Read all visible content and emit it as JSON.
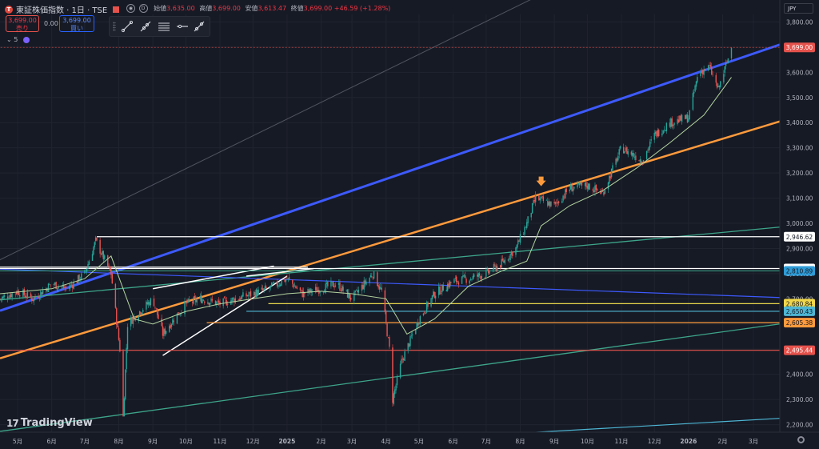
{
  "header": {
    "symbol_name": "東証株価指数 · 1日 · TSE",
    "logo_letter": "T",
    "ohlc": [
      {
        "label": "始値",
        "value": "3,635.00"
      },
      {
        "label": "高値",
        "value": "3,699.00"
      },
      {
        "label": "安値",
        "value": "3,613.47"
      },
      {
        "label": "終値",
        "value": "3,699.00"
      }
    ],
    "change": "+46.59 (+1.28%)",
    "sell_price": "3,699.00",
    "sell_label": "売り",
    "spread": "0.00",
    "buy_price": "3,699.00",
    "buy_label": "買い",
    "indicator_count": "5"
  },
  "currency": "JPY",
  "branding": "TradingView",
  "colors": {
    "background": "#161a25",
    "up": "#26a69a",
    "down": "#ef5350",
    "blue_channel": "#3d5afe",
    "orange_channel": "#ff9a3c",
    "ma": "#b4d4a0"
  },
  "chart_data": {
    "type": "candlestick",
    "title": "",
    "yaxis_side": "right",
    "ylim": [
      2170,
      3830
    ],
    "y_ticks": [
      2200,
      2300,
      2400,
      2500,
      2600,
      2700,
      2800,
      2900,
      3000,
      3100,
      3200,
      3300,
      3400,
      3500,
      3600,
      3700,
      3800
    ],
    "y_tick_labels": [
      "2,200.00",
      "2,300.00",
      "2,400.00",
      "2,500.00",
      "2,600.00",
      "2,700.00",
      "2,800.00",
      "2,900.00",
      "3,000.00",
      "3,100.00",
      "3,200.00",
      "3,300.00",
      "3,400.00",
      "3,500.00",
      "3,600.00",
      "3,700.00",
      "3,800.00"
    ],
    "x_range": [
      "2024-04-15",
      "2026-03-25"
    ],
    "x_ticks": [
      {
        "date": "2024-05-01",
        "label": "5月"
      },
      {
        "date": "2024-06-01",
        "label": "6月"
      },
      {
        "date": "2024-07-01",
        "label": "7月"
      },
      {
        "date": "2024-08-01",
        "label": "8月"
      },
      {
        "date": "2024-09-01",
        "label": "9月"
      },
      {
        "date": "2024-10-01",
        "label": "10月"
      },
      {
        "date": "2024-11-01",
        "label": "11月"
      },
      {
        "date": "2024-12-01",
        "label": "12月"
      },
      {
        "date": "2025-01-01",
        "label": "2025"
      },
      {
        "date": "2025-02-01",
        "label": "2月"
      },
      {
        "date": "2025-03-01",
        "label": "3月"
      },
      {
        "date": "2025-04-01",
        "label": "4月"
      },
      {
        "date": "2025-05-01",
        "label": "5月"
      },
      {
        "date": "2025-06-01",
        "label": "6月"
      },
      {
        "date": "2025-07-01",
        "label": "7月"
      },
      {
        "date": "2025-08-01",
        "label": "8月"
      },
      {
        "date": "2025-09-01",
        "label": "9月"
      },
      {
        "date": "2025-10-01",
        "label": "10月"
      },
      {
        "date": "2025-11-01",
        "label": "11月"
      },
      {
        "date": "2025-12-01",
        "label": "12月"
      },
      {
        "date": "2026-01-01",
        "label": "2026"
      },
      {
        "date": "2026-02-01",
        "label": "2月"
      },
      {
        "date": "2026-03-01",
        "label": "3月"
      }
    ],
    "close_path": [
      [
        "2024-04-15",
        2700
      ],
      [
        "2024-05-01",
        2730
      ],
      [
        "2024-05-15",
        2700
      ],
      [
        "2024-06-01",
        2760
      ],
      [
        "2024-06-15",
        2740
      ],
      [
        "2024-07-01",
        2800
      ],
      [
        "2024-07-11",
        2930
      ],
      [
        "2024-07-25",
        2800
      ],
      [
        "2024-08-02",
        2500
      ],
      [
        "2024-08-05",
        2230
      ],
      [
        "2024-08-09",
        2600
      ],
      [
        "2024-08-20",
        2650
      ],
      [
        "2024-09-01",
        2700
      ],
      [
        "2024-09-10",
        2560
      ],
      [
        "2024-09-20",
        2620
      ],
      [
        "2024-10-01",
        2680
      ],
      [
        "2024-10-15",
        2700
      ],
      [
        "2024-11-01",
        2680
      ],
      [
        "2024-11-15",
        2700
      ],
      [
        "2024-12-01",
        2720
      ],
      [
        "2024-12-15",
        2740
      ],
      [
        "2025-01-01",
        2780
      ],
      [
        "2025-01-15",
        2720
      ],
      [
        "2025-02-01",
        2740
      ],
      [
        "2025-02-15",
        2760
      ],
      [
        "2025-03-01",
        2700
      ],
      [
        "2025-03-20",
        2800
      ],
      [
        "2025-03-28",
        2730
      ],
      [
        "2025-04-04",
        2500
      ],
      [
        "2025-04-07",
        2300
      ],
      [
        "2025-04-15",
        2450
      ],
      [
        "2025-05-01",
        2620
      ],
      [
        "2025-05-15",
        2720
      ],
      [
        "2025-06-01",
        2770
      ],
      [
        "2025-06-15",
        2780
      ],
      [
        "2025-07-01",
        2800
      ],
      [
        "2025-07-15",
        2840
      ],
      [
        "2025-07-28",
        2900
      ],
      [
        "2025-08-07",
        3000
      ],
      [
        "2025-08-15",
        3100
      ],
      [
        "2025-09-01",
        3070
      ],
      [
        "2025-09-15",
        3140
      ],
      [
        "2025-10-01",
        3150
      ],
      [
        "2025-10-15",
        3120
      ],
      [
        "2025-11-01",
        3300
      ],
      [
        "2025-11-20",
        3250
      ],
      [
        "2025-12-01",
        3350
      ],
      [
        "2025-12-15",
        3400
      ],
      [
        "2026-01-01",
        3420
      ],
      [
        "2026-01-10",
        3600
      ],
      [
        "2026-01-20",
        3620
      ],
      [
        "2026-01-28",
        3530
      ],
      [
        "2026-02-05",
        3640
      ],
      [
        "2026-02-09",
        3699
      ]
    ],
    "moving_average": [
      [
        "2024-04-15",
        2720
      ],
      [
        "2024-06-01",
        2740
      ],
      [
        "2024-07-01",
        2780
      ],
      [
        "2024-07-25",
        2870
      ],
      [
        "2024-08-15",
        2620
      ],
      [
        "2024-09-01",
        2600
      ],
      [
        "2024-10-01",
        2650
      ],
      [
        "2024-11-01",
        2680
      ],
      [
        "2024-12-01",
        2700
      ],
      [
        "2025-01-01",
        2720
      ],
      [
        "2025-02-01",
        2730
      ],
      [
        "2025-03-01",
        2720
      ],
      [
        "2025-04-01",
        2700
      ],
      [
        "2025-04-20",
        2560
      ],
      [
        "2025-05-15",
        2620
      ],
      [
        "2025-06-15",
        2750
      ],
      [
        "2025-07-15",
        2810
      ],
      [
        "2025-08-07",
        2850
      ],
      [
        "2025-08-20",
        2990
      ],
      [
        "2025-09-15",
        3070
      ],
      [
        "2025-10-15",
        3130
      ],
      [
        "2025-11-15",
        3220
      ],
      [
        "2025-12-15",
        3320
      ],
      [
        "2026-01-15",
        3430
      ],
      [
        "2026-02-09",
        3580
      ]
    ],
    "trend_lines": [
      {
        "name": "blue channel",
        "color": "#3d5afe",
        "width": 3,
        "p1": [
          "2024-04-20",
          2660
        ],
        "p2": [
          "2026-03-25",
          3710
        ]
      },
      {
        "name": "orange channel",
        "color": "#ff9a3c",
        "width": 2.5,
        "p1": [
          "2024-04-01",
          2445
        ],
        "p2": [
          "2026-03-25",
          3405
        ]
      },
      {
        "name": "green upper",
        "color": "#3da58a",
        "width": 1.3,
        "p1": [
          "2024-04-01",
          2690
        ],
        "p2": [
          "2026-03-25",
          2985
        ]
      },
      {
        "name": "green lower",
        "color": "#3da58a",
        "width": 1.3,
        "p1": [
          "2024-04-01",
          2165
        ],
        "p2": [
          "2026-03-25",
          2600
        ]
      },
      {
        "name": "cyan bottom",
        "color": "#4db6d4",
        "width": 1.2,
        "p1": [
          "2024-04-01",
          2045
        ],
        "p2": [
          "2026-03-25",
          2225
        ]
      },
      {
        "name": "gray diagonal",
        "color": "#787b86",
        "width": 1,
        "p1": [
          "2024-04-01",
          2825
        ],
        "p2": [
          "2025-12-01",
          4130
        ]
      },
      {
        "name": "blue descending",
        "color": "#3d5afe",
        "width": 1.2,
        "p1": [
          "2024-04-01",
          2820
        ],
        "p2": [
          "2026-03-25",
          2705
        ]
      },
      {
        "name": "white wedge lower",
        "color": "#ffffff",
        "width": 1.5,
        "p1": [
          "2024-09-10",
          2475
        ],
        "p2": [
          "2025-01-01",
          2790
        ]
      },
      {
        "name": "white wedge upper",
        "color": "#ffffff",
        "width": 1.5,
        "p1": [
          "2024-09-01",
          2740
        ],
        "p2": [
          "2024-12-20",
          2830
        ]
      },
      {
        "name": "white wedge short",
        "color": "#ffffff",
        "width": 1.5,
        "p1": [
          "2024-11-25",
          2790
        ],
        "p2": [
          "2025-01-25",
          2820
        ]
      }
    ],
    "h_segments": [
      {
        "color": "#ffffff",
        "y": 2946.62,
        "x1": "2024-07-12",
        "x2": "2026-03-25",
        "width": 1.3
      },
      {
        "color": "#ffffff",
        "y": 2820.4,
        "x1": "2024-04-01",
        "x2": "2026-03-25",
        "width": 1.3
      },
      {
        "color": "#ffffff",
        "y": 2826,
        "x1": "2024-04-01",
        "x2": "2025-01-20",
        "width": 1.3
      },
      {
        "color": "#3da58a",
        "y": 2810.89,
        "x1": "2024-04-01",
        "x2": "2026-03-25",
        "width": 1
      },
      {
        "color": "#e8d44d",
        "y": 2680.84,
        "x1": "2024-12-15",
        "x2": "2026-03-25",
        "width": 1.3
      },
      {
        "color": "#4db6d4",
        "y": 2650.43,
        "x1": "2024-11-25",
        "x2": "2026-03-25",
        "width": 1.2
      },
      {
        "color": "#ff9a3c",
        "y": 2605.38,
        "x1": "2024-10-20",
        "x2": "2026-03-25",
        "width": 1.2
      },
      {
        "color": "#e5524c",
        "y": 2495.44,
        "x1": "2024-04-01",
        "x2": "2026-03-25",
        "width": 1.2
      },
      {
        "color": "#e5524c",
        "y": 3699.0,
        "x1": "2024-04-01",
        "x2": "2026-03-25",
        "width": 0.6,
        "dash": true
      }
    ],
    "price_labels": [
      {
        "value": 3699.0,
        "text": "3,699.00",
        "bg": "#e5524c",
        "fg": "#ffffff"
      },
      {
        "value": 2946.62,
        "text": "2,946.62",
        "bg": "#ffffff",
        "fg": "#131722"
      },
      {
        "value": 2820.4,
        "text": "2,820.40",
        "bg": "#ffffff",
        "fg": "#131722"
      },
      {
        "value": 2810.89,
        "text": "2,810.89",
        "bg": "#2e9bd6",
        "fg": "#131722"
      },
      {
        "value": 2680.84,
        "text": "2,680.84",
        "bg": "#f0d64a",
        "fg": "#131722"
      },
      {
        "value": 2650.43,
        "text": "2,650.43",
        "bg": "#4db6d4",
        "fg": "#131722"
      },
      {
        "value": 2605.38,
        "text": "2,605.38",
        "bg": "#ff9a3c",
        "fg": "#131722"
      },
      {
        "value": 2495.44,
        "text": "2,495.44",
        "bg": "#e5524c",
        "fg": "#ffffff"
      }
    ],
    "annotations": [
      {
        "type": "arrow-down",
        "date": "2025-08-20",
        "value": 3160,
        "color": "#ff9a3c"
      }
    ]
  }
}
